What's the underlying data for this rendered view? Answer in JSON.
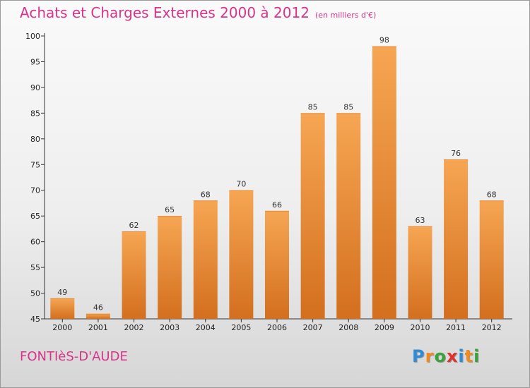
{
  "header": {
    "title": "Achats et Charges Externes 2000 à 2012",
    "unit": "(en milliers d'€)"
  },
  "footer": {
    "commune": "FONTIèS-D'AUDE",
    "logo_letters": [
      "P",
      "r",
      "o",
      "x",
      "i",
      "t",
      "i"
    ],
    "logo_colors": [
      "#2e8bd6",
      "#f08a1c",
      "#3aa23a",
      "#e0312e",
      "#2e8bd6",
      "#f08a1c",
      "#3aa23a"
    ]
  },
  "colors": {
    "bar_top": "#f6a653",
    "bar_bottom": "#d36f1e",
    "axis": "#333333",
    "grid": "#cccccc"
  },
  "chart_data": {
    "type": "bar",
    "title": "Achats et Charges Externes 2000 à 2012",
    "ylabel": "en milliers d'€",
    "xlabel": "",
    "categories": [
      "2000",
      "2001",
      "2002",
      "2003",
      "2004",
      "2005",
      "2006",
      "2007",
      "2008",
      "2009",
      "2010",
      "2011",
      "2012"
    ],
    "values": [
      49,
      46,
      62,
      65,
      68,
      70,
      66,
      85,
      85,
      98,
      63,
      76,
      68
    ],
    "ylim": [
      45,
      100
    ],
    "yticks": [
      45,
      50,
      55,
      60,
      65,
      70,
      75,
      80,
      85,
      90,
      95,
      100
    ],
    "grid": false,
    "legend": "none"
  }
}
